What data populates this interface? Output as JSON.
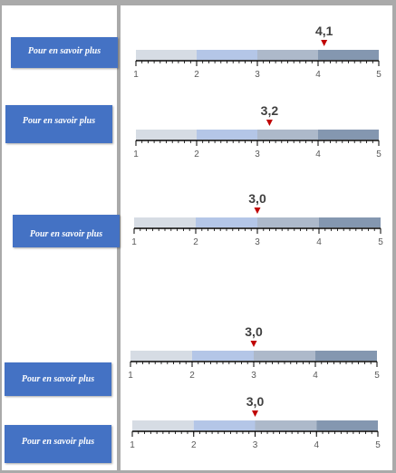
{
  "buttons": [
    {
      "label": "Pour en savoir plus"
    },
    {
      "label": "Pour en savoir plus"
    },
    {
      "label": "Pour en savoir plus"
    },
    {
      "label": "Pour en savoir plus"
    },
    {
      "label": "Pour en savoir plus"
    }
  ],
  "chart_data": [
    {
      "type": "bar",
      "x_min": 1,
      "x_max": 5,
      "ticks": [
        "1",
        "2",
        "3",
        "4",
        "5"
      ],
      "marker_value": 4.1,
      "marker_label": "4,1",
      "band_colors": [
        "#d6dce4",
        "#b4c6e7",
        "#adb9ca",
        "#8497b0"
      ]
    },
    {
      "type": "bar",
      "x_min": 1,
      "x_max": 5,
      "ticks": [
        "1",
        "2",
        "3",
        "4",
        "5"
      ],
      "marker_value": 3.2,
      "marker_label": "3,2",
      "band_colors": [
        "#d6dce4",
        "#b4c6e7",
        "#adb9ca",
        "#8497b0"
      ]
    },
    {
      "type": "bar",
      "x_min": 1,
      "x_max": 5,
      "ticks": [
        "1",
        "2",
        "3",
        "4",
        "5"
      ],
      "marker_value": 3.0,
      "marker_label": "3,0",
      "band_colors": [
        "#d6dce4",
        "#b4c6e7",
        "#adb9ca",
        "#8497b0"
      ]
    },
    {
      "type": "bar",
      "x_min": 1,
      "x_max": 5,
      "ticks": [
        "1",
        "2",
        "3",
        "4",
        "5"
      ],
      "marker_value": 3.0,
      "marker_label": "3,0",
      "band_colors": [
        "#d6dce4",
        "#b4c6e7",
        "#adb9ca",
        "#8497b0"
      ]
    },
    {
      "type": "bar",
      "x_min": 1,
      "x_max": 5,
      "ticks": [
        "1",
        "2",
        "3",
        "4",
        "5"
      ],
      "marker_value": 3.0,
      "marker_label": "3,0",
      "band_colors": [
        "#d6dce4",
        "#b4c6e7",
        "#adb9ca",
        "#8497b0"
      ]
    }
  ],
  "colors": {
    "button": "#4472c4",
    "marker": "#c00000",
    "frame": "#aaaaaa"
  }
}
